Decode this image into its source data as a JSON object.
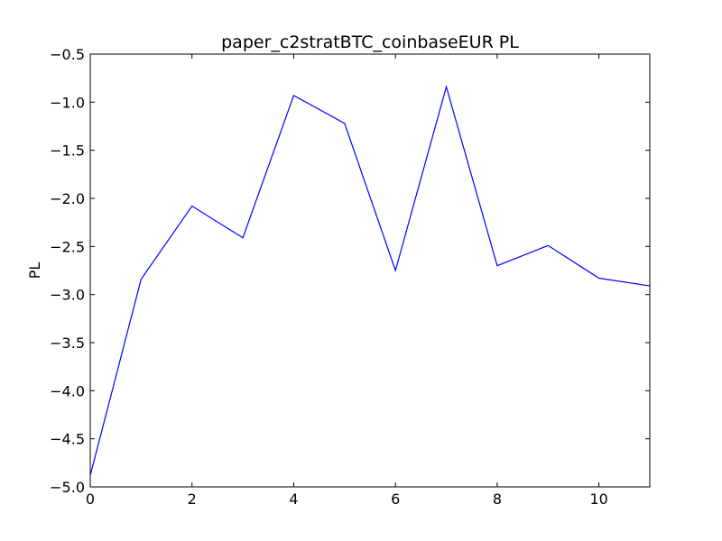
{
  "chart_data": {
    "type": "line",
    "title": "paper_c2stratBTC_coinbaseEUR PL",
    "xlabel": "",
    "ylabel": "PL",
    "xlim": [
      0,
      11
    ],
    "ylim": [
      -5.0,
      -0.5
    ],
    "xticks": [
      0,
      2,
      4,
      6,
      8,
      10
    ],
    "xtick_labels": [
      "0",
      "2",
      "4",
      "6",
      "8",
      "10"
    ],
    "yticks": [
      -5.0,
      -4.5,
      -4.0,
      -3.5,
      -3.0,
      -2.5,
      -2.0,
      -1.5,
      -1.0,
      -0.5
    ],
    "ytick_labels": [
      "−5.0",
      "−4.5",
      "−4.0",
      "−3.5",
      "−3.0",
      "−2.5",
      "−2.0",
      "−1.5",
      "−1.0",
      "−0.5"
    ],
    "grid": false,
    "series": [
      {
        "color": "#0000ff",
        "x": [
          0,
          1,
          2,
          3,
          4,
          5,
          6,
          7,
          8,
          9,
          10,
          11
        ],
        "y": [
          -4.88,
          -2.84,
          -2.08,
          -2.41,
          -0.93,
          -1.22,
          -2.75,
          -0.84,
          -2.7,
          -2.49,
          -2.83,
          -2.91
        ]
      }
    ]
  }
}
